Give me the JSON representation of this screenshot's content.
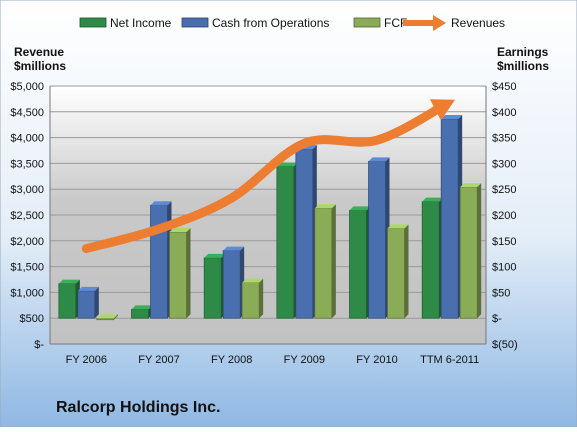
{
  "chart_data": {
    "type": "bar",
    "company": "Ralcorp Holdings Inc.",
    "left_axis_label": [
      "Revenue",
      "$millions"
    ],
    "right_axis_label": [
      "Earnings",
      "$millions"
    ],
    "categories": [
      "FY 2006",
      "FY 2007",
      "FY 2008",
      "FY 2009",
      "FY 2010",
      "TTM 6-2011"
    ],
    "left_axis": {
      "ylim": [
        0,
        5000
      ],
      "tick_values": [
        0,
        500,
        1000,
        1500,
        2000,
        2500,
        3000,
        3500,
        4000,
        4500,
        5000
      ],
      "tick_labels": [
        "$-",
        "$500",
        "$1,000",
        "$1,500",
        "$2,000",
        "$2,500",
        "$3,000",
        "$3,500",
        "$4,000",
        "$4,500",
        "$5,000"
      ]
    },
    "right_axis": {
      "ylim": [
        -50,
        450
      ],
      "tick_values": [
        -50,
        0,
        50,
        100,
        150,
        200,
        250,
        300,
        350,
        400,
        450
      ],
      "tick_labels": [
        "$(50)",
        "$-",
        "$50",
        "$100",
        "$150",
        "$200",
        "$250",
        "$300",
        "$350",
        "$400",
        "$450"
      ]
    },
    "series": [
      {
        "name": "Net Income",
        "axis": "right",
        "kind": "bar",
        "color": "#2e8b47",
        "values": [
          67,
          17,
          117,
          294,
          209,
          226
        ]
      },
      {
        "name": "Cash from Operations",
        "axis": "right",
        "kind": "bar",
        "color": "#4a6fae",
        "values": [
          53,
          219,
          131,
          328,
          304,
          386
        ]
      },
      {
        "name": "FCF",
        "axis": "right",
        "kind": "bar",
        "color": "#8aac56",
        "values": [
          -3,
          167,
          69,
          213,
          174,
          254
        ]
      },
      {
        "name": "Revenues",
        "axis": "left",
        "kind": "line",
        "color": "#ed7d31",
        "values": [
          1850,
          2230,
          2830,
          3890,
          3950,
          4680
        ]
      }
    ],
    "legend_position": "top",
    "grid": true
  }
}
